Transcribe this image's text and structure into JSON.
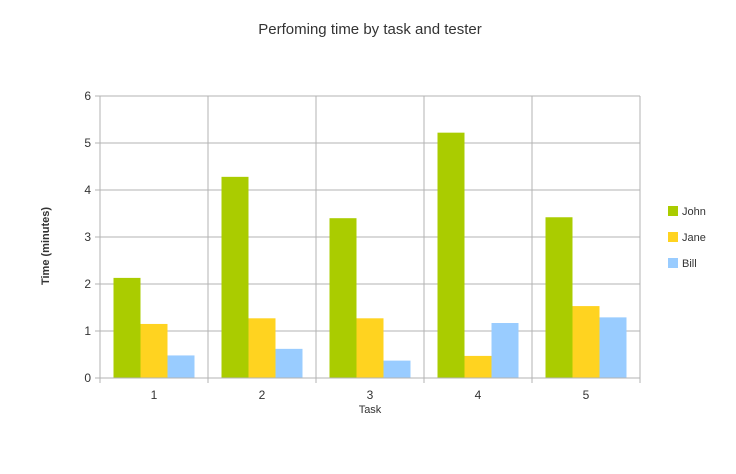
{
  "chart_data": {
    "type": "bar",
    "title": "Perfoming time by task and tester",
    "xlabel": "Task",
    "ylabel": "Time (minutes)",
    "categories": [
      "1",
      "2",
      "3",
      "4",
      "5"
    ],
    "ylim": [
      0,
      6
    ],
    "yticks": [
      "0",
      "1",
      "2",
      "3",
      "4",
      "5",
      "6"
    ],
    "grid": true,
    "legend_position": "right",
    "series": [
      {
        "name": "John",
        "color": "#aacc00",
        "values": [
          2.13,
          4.28,
          3.4,
          5.22,
          3.42
        ]
      },
      {
        "name": "Jane",
        "color": "#ffd320",
        "values": [
          1.15,
          1.27,
          1.27,
          0.47,
          1.53
        ]
      },
      {
        "name": "Bill",
        "color": "#99ccff",
        "values": [
          0.48,
          0.62,
          0.37,
          1.17,
          1.29
        ]
      }
    ]
  }
}
